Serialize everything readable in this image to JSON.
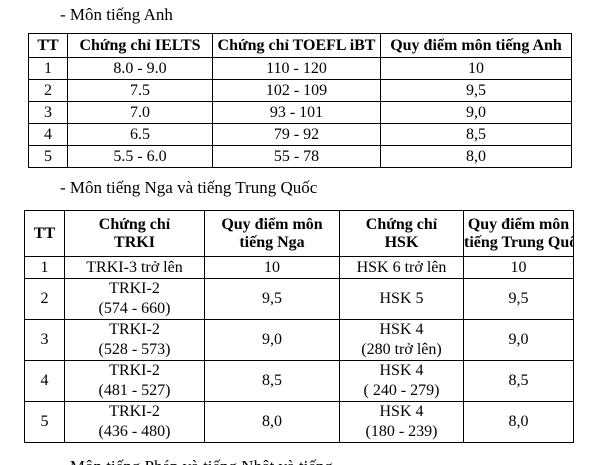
{
  "english_section": {
    "heading": "- Môn tiếng Anh",
    "columns": [
      "TT",
      "Chứng chỉ IELTS",
      "Chứng chỉ TOEFL iBT",
      "Quy điểm môn tiếng Anh"
    ],
    "rows": [
      [
        "1",
        "8.0 - 9.0",
        "110 - 120",
        "10"
      ],
      [
        "2",
        "7.5",
        "102 - 109",
        "9,5"
      ],
      [
        "3",
        "7.0",
        "93 - 101",
        "9,0"
      ],
      [
        "4",
        "6.5",
        "79 - 92",
        "8,5"
      ],
      [
        "5",
        "5.5 - 6.0",
        "55 - 78",
        "8,0"
      ]
    ]
  },
  "russian_chinese_section": {
    "heading": "- Môn tiếng Nga và tiếng Trung Quốc",
    "columns": [
      [
        "TT"
      ],
      [
        "Chứng chỉ",
        "TRKI"
      ],
      [
        "Quy điểm môn",
        "tiếng Nga"
      ],
      [
        "Chứng chỉ",
        "HSK"
      ],
      [
        "Quy điểm môn",
        "tiếng Trung Quốc"
      ]
    ],
    "rows": [
      {
        "tt": "1",
        "trki": [
          "TRKI-3 trở lên"
        ],
        "russian_score": "10",
        "hsk": [
          "HSK 6 trở lên"
        ],
        "chinese_score": "10"
      },
      {
        "tt": "2",
        "trki": [
          "TRKI-2",
          "(574 - 660)"
        ],
        "russian_score": "9,5",
        "hsk": [
          "HSK 5"
        ],
        "chinese_score": "9,5"
      },
      {
        "tt": "3",
        "trki": [
          "TRKI-2",
          "(528 - 573)"
        ],
        "russian_score": "9,0",
        "hsk": [
          "HSK 4",
          "(280 trở lên)"
        ],
        "chinese_score": "9,0"
      },
      {
        "tt": "4",
        "trki": [
          "TRKI-2",
          "(481 - 527)"
        ],
        "russian_score": "8,5",
        "hsk": [
          "HSK 4",
          "( 240 - 279)"
        ],
        "chinese_score": "8,5"
      },
      {
        "tt": "5",
        "trki": [
          "TRKI-2",
          "(436 - 480)"
        ],
        "russian_score": "8,0",
        "hsk": [
          "HSK 4",
          "(180 - 239)"
        ],
        "chinese_score": "8,0"
      }
    ]
  },
  "partial_next_line": "- Môn tiếng Pháp và tiếng Nhật và tiếng Đức"
}
